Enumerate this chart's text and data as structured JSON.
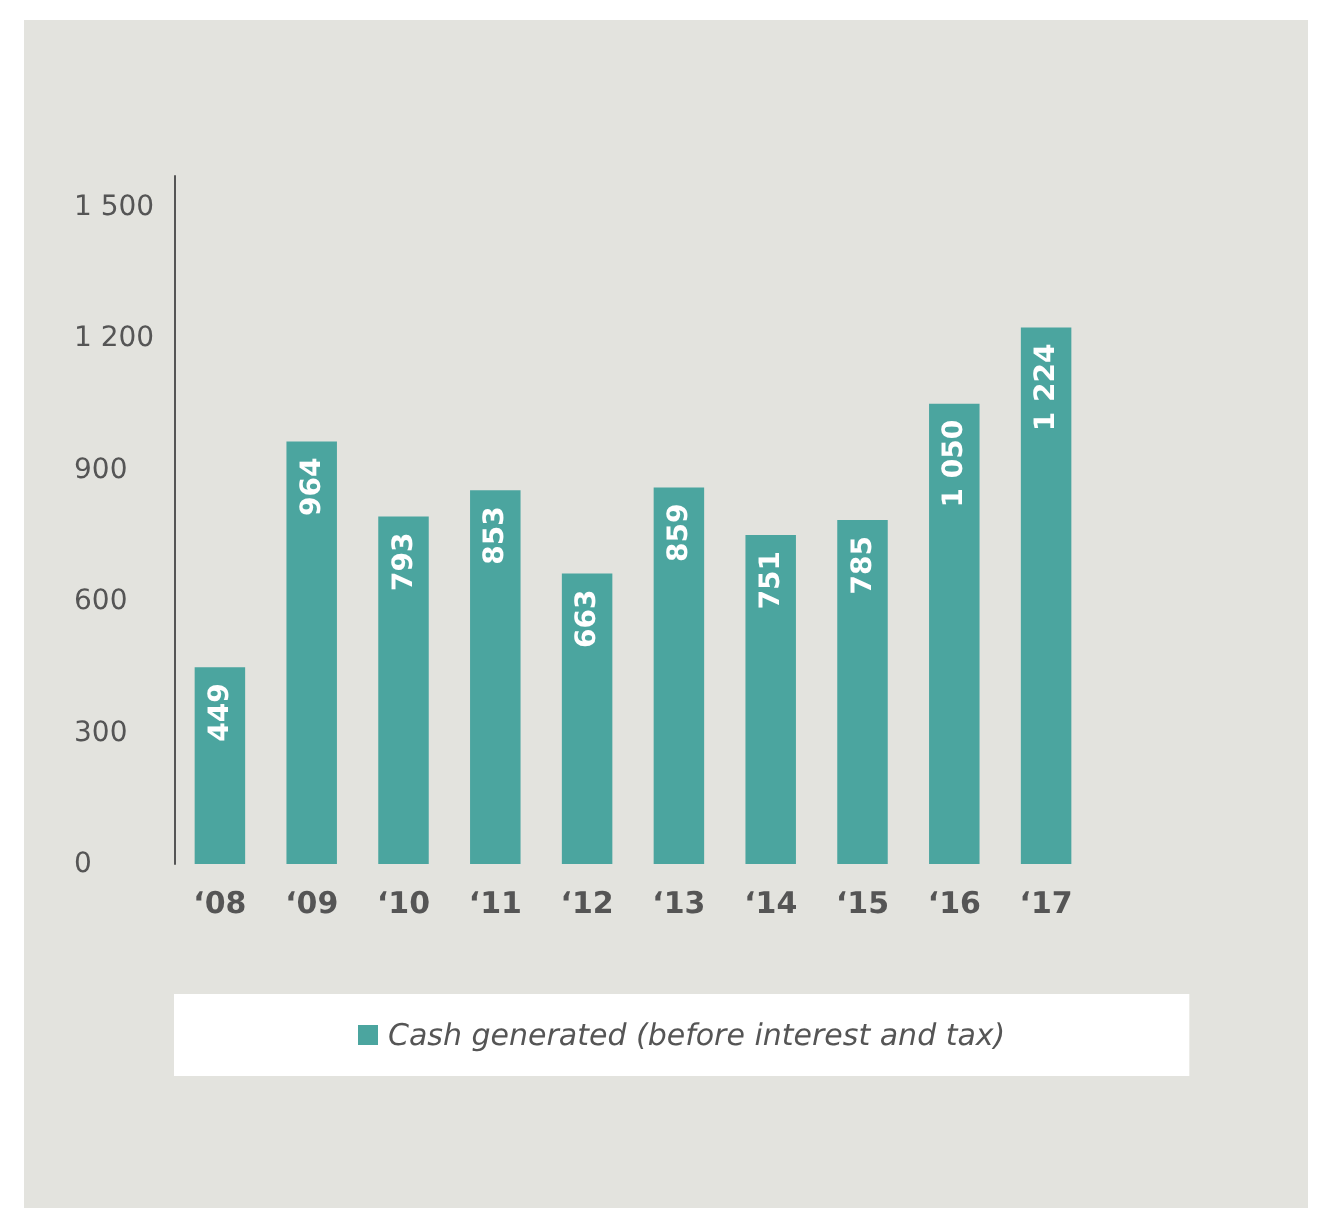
{
  "chart_data": {
    "type": "bar",
    "categories": [
      "‘08",
      "‘09",
      "‘10",
      "‘11",
      "‘12",
      "‘13",
      "‘14",
      "‘15",
      "‘16",
      "‘17"
    ],
    "series": [
      {
        "name": "Cash generated (before interest and tax)",
        "color": "#4ba59f",
        "values": [
          449,
          964,
          793,
          853,
          663,
          859,
          751,
          785,
          1050,
          1224
        ],
        "value_labels": [
          "449",
          "964",
          "793",
          "853",
          "663",
          "859",
          "751",
          "785",
          "1 050",
          "1 224"
        ]
      }
    ],
    "ylim": [
      0,
      1570
    ],
    "yticks": [
      0,
      300,
      600,
      900,
      {
        "value": 1200,
        "label": "1 200"
      },
      {
        "value": 1500,
        "label": "1 500"
      }
    ],
    "grid": false,
    "legend": "bottom"
  }
}
